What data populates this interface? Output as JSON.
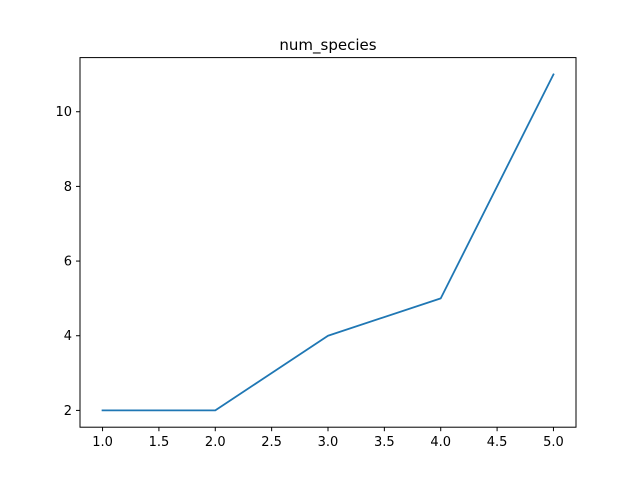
{
  "chart_data": {
    "type": "line",
    "title": "num_species",
    "xlabel": "",
    "ylabel": "",
    "x": [
      1.0,
      2.0,
      3.0,
      4.0,
      5.0
    ],
    "series": [
      {
        "values": [
          2,
          2,
          4,
          5,
          11
        ],
        "color": "#1f77b4"
      }
    ],
    "xlim": [
      0.8,
      5.2
    ],
    "ylim": [
      1.55,
      11.45
    ],
    "xticks": [
      1.0,
      1.5,
      2.0,
      2.5,
      3.0,
      3.5,
      4.0,
      4.5,
      5.0
    ],
    "xtick_labels": [
      "1.0",
      "1.5",
      "2.0",
      "2.5",
      "3.0",
      "3.5",
      "4.0",
      "4.5",
      "5.0"
    ],
    "yticks": [
      2,
      4,
      6,
      8,
      10
    ],
    "ytick_labels": [
      "2",
      "4",
      "6",
      "8",
      "10"
    ],
    "grid": false,
    "legend": "none"
  }
}
